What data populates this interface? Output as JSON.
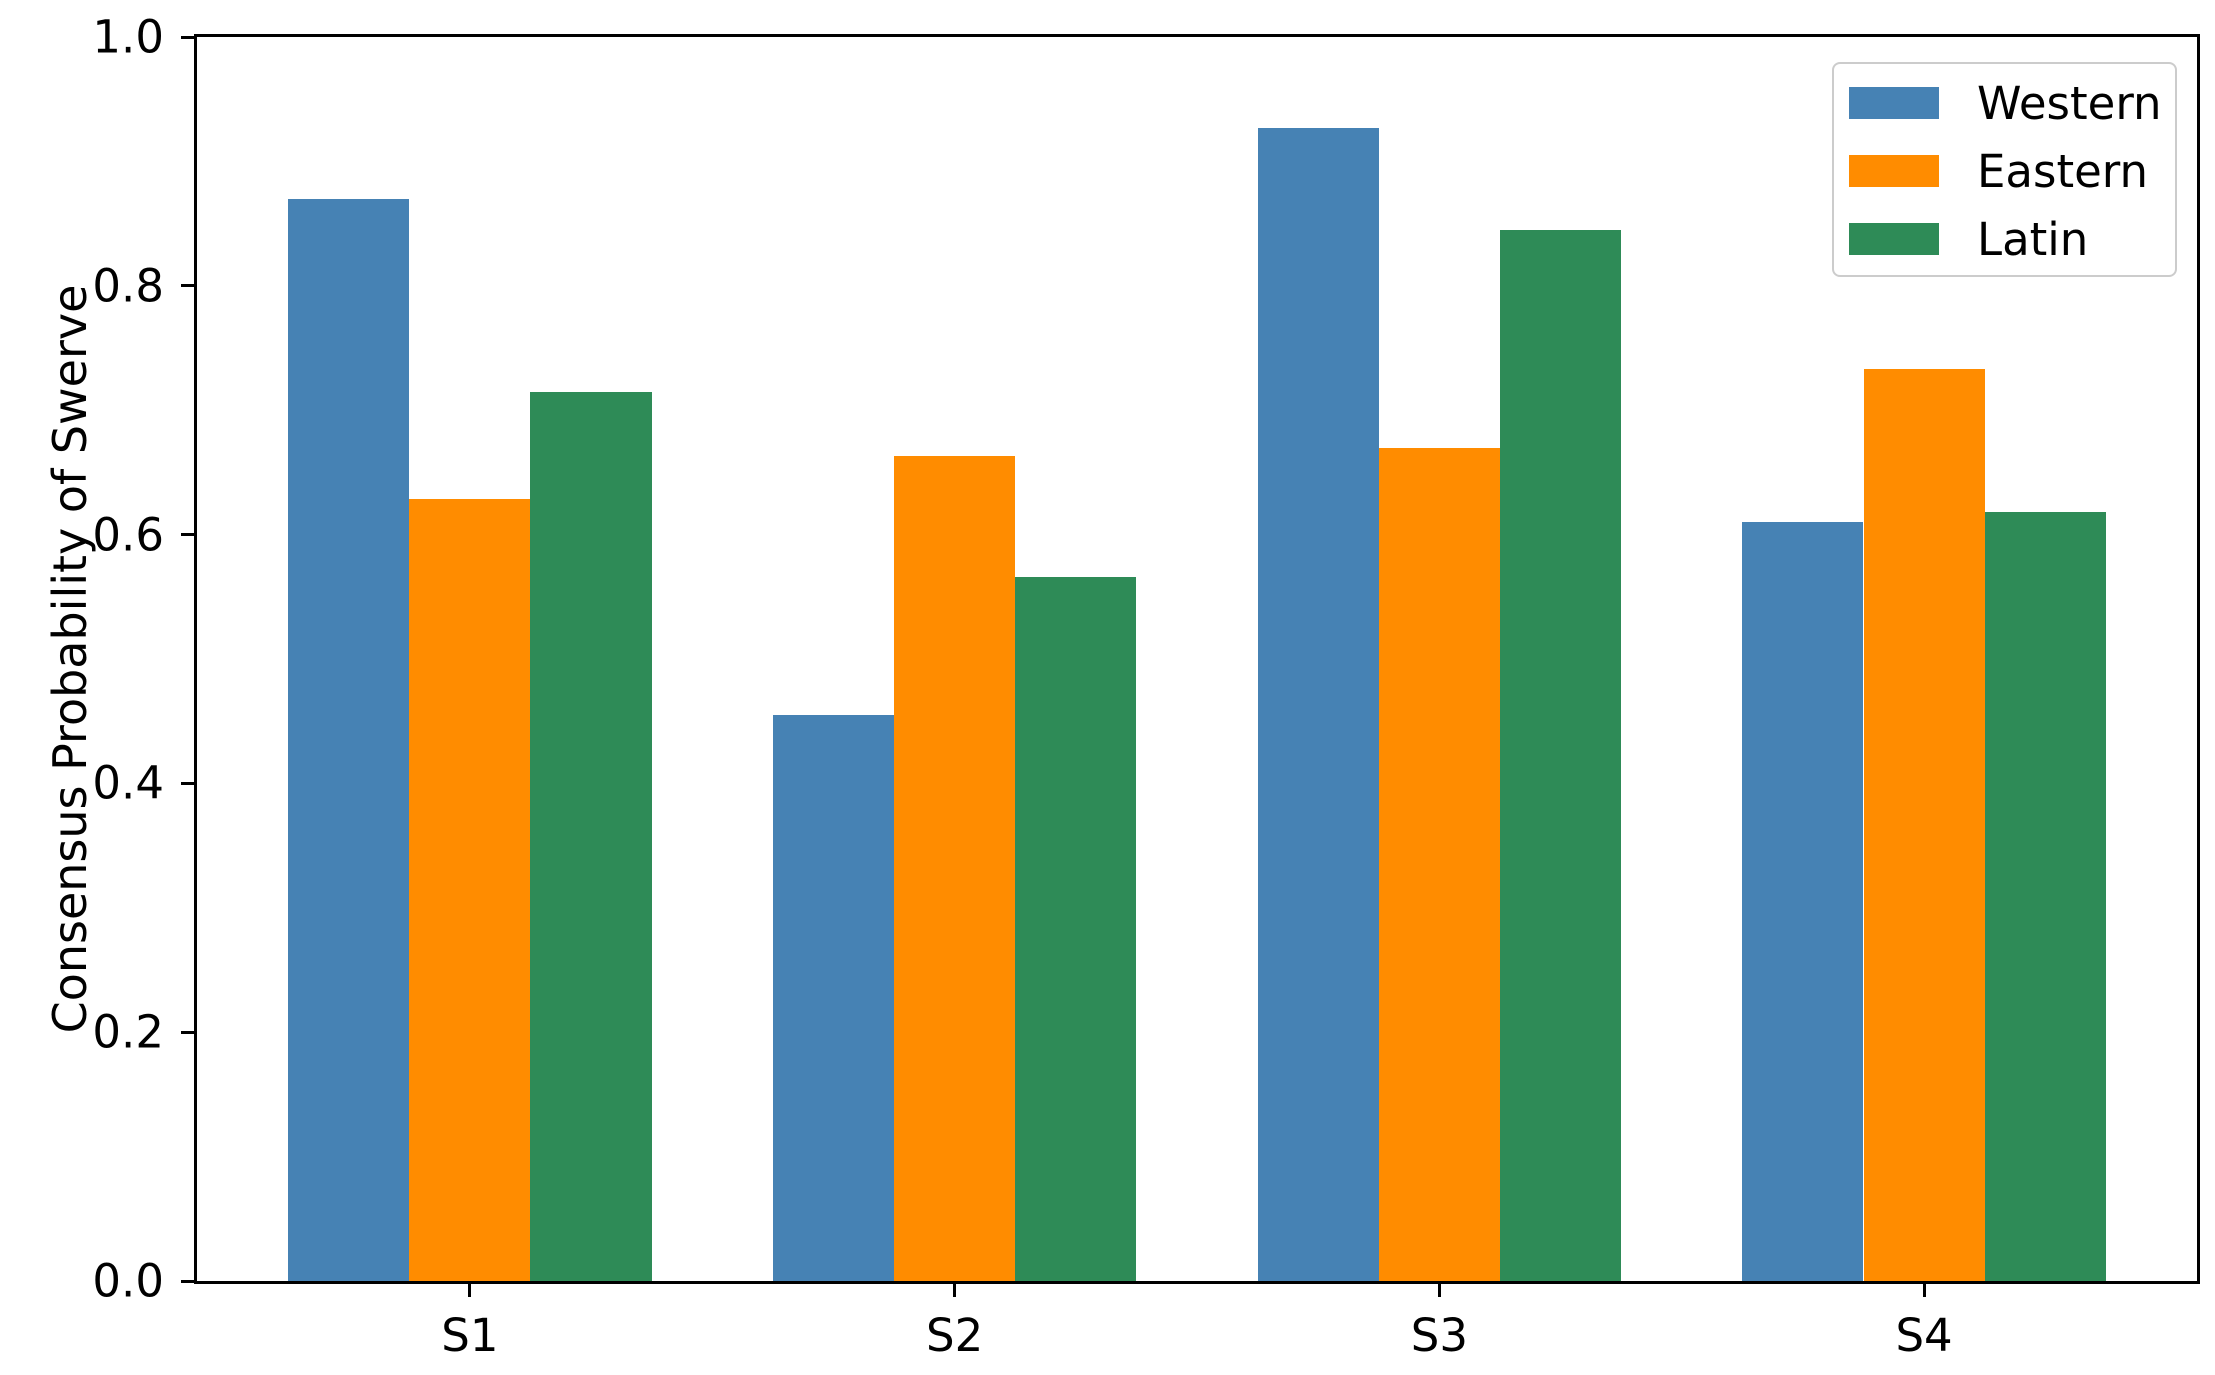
{
  "chart_data": {
    "type": "bar",
    "title": "",
    "xlabel": "",
    "ylabel": "Consensus Probability of Swerve",
    "categories": [
      "S1",
      "S2",
      "S3",
      "S4"
    ],
    "series": [
      {
        "name": "Western",
        "color": "#4682B4",
        "values": [
          0.87,
          0.455,
          0.927,
          0.61
        ]
      },
      {
        "name": "Eastern",
        "color": "#FF8C00",
        "values": [
          0.629,
          0.663,
          0.67,
          0.733
        ]
      },
      {
        "name": "Latin",
        "color": "#2E8B57",
        "values": [
          0.715,
          0.566,
          0.845,
          0.618
        ]
      }
    ],
    "ylim": [
      0,
      1
    ],
    "ytick_labels": [
      "0.0",
      "0.2",
      "0.4",
      "0.6",
      "0.8",
      "1.0"
    ],
    "grid": false,
    "legend": {
      "position": "upper right",
      "entries": [
        "Western",
        "Eastern",
        "Latin"
      ]
    }
  }
}
